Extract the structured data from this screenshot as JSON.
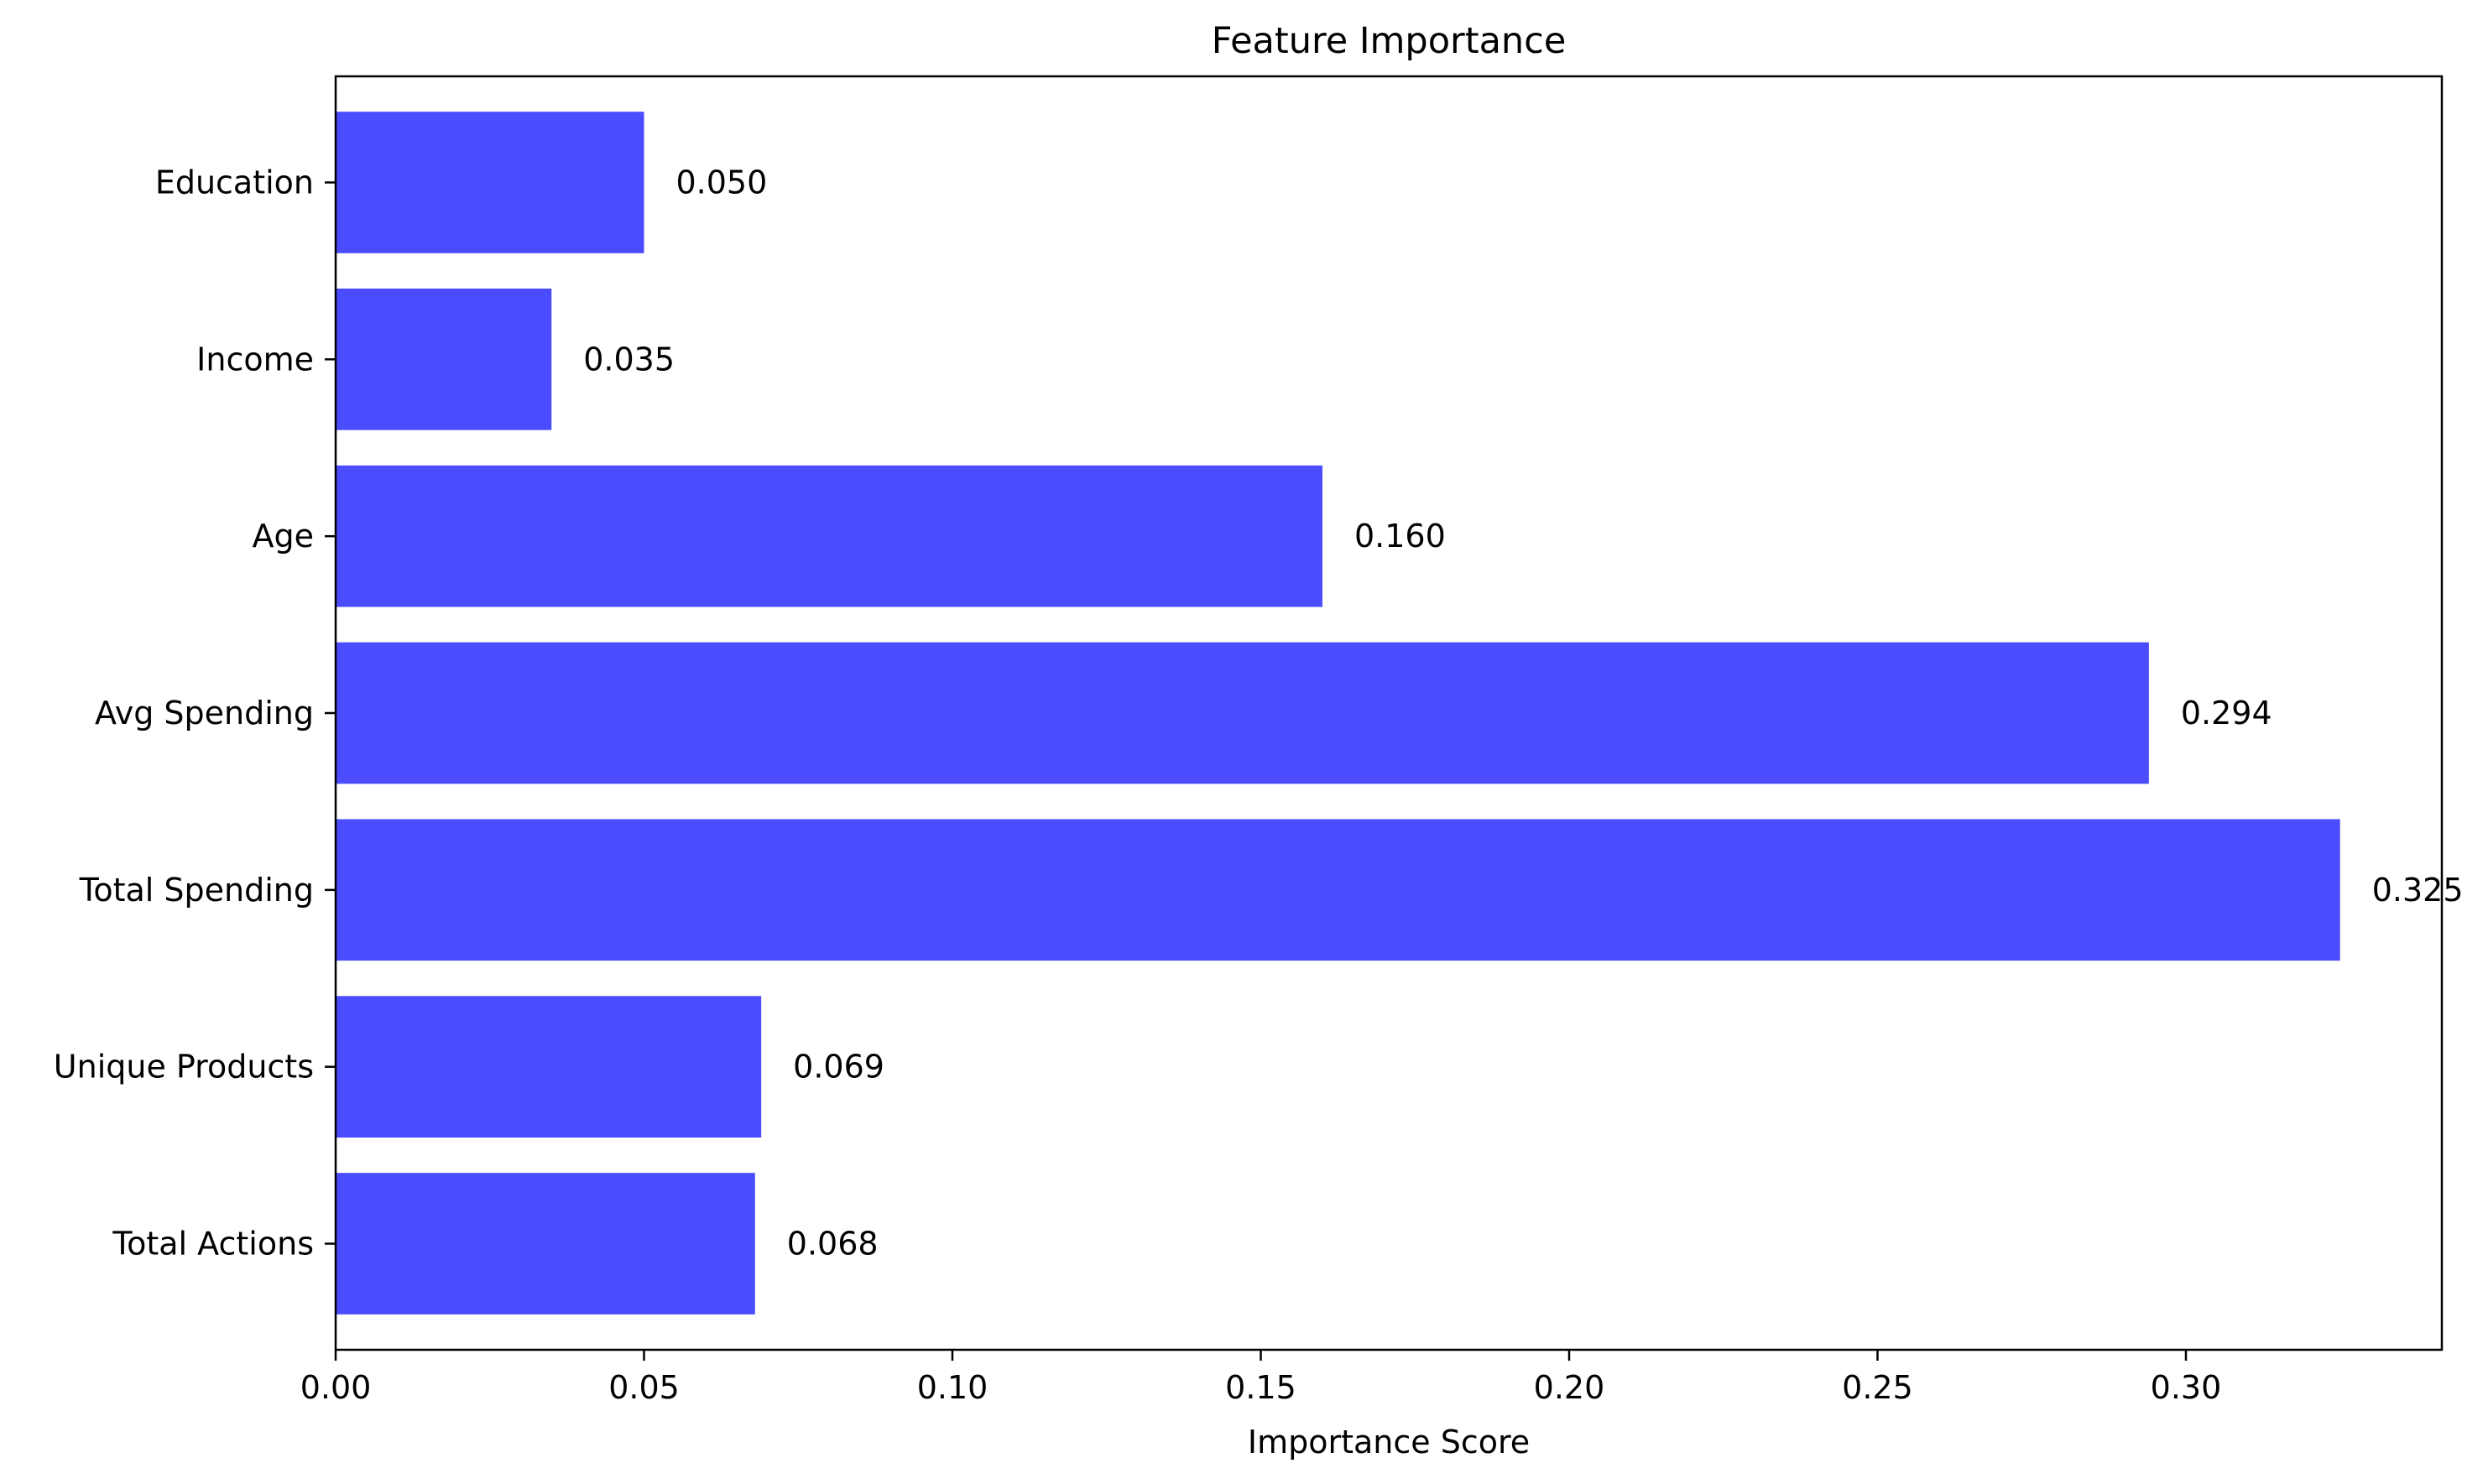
{
  "chart_data": {
    "type": "bar",
    "orientation": "horizontal",
    "title": "Feature Importance",
    "xlabel": "Importance Score",
    "ylabel": "",
    "categories": [
      "Total Actions",
      "Unique Products",
      "Total Spending",
      "Avg Spending",
      "Age",
      "Income",
      "Education"
    ],
    "values": [
      0.068,
      0.069,
      0.325,
      0.294,
      0.16,
      0.035,
      0.05
    ],
    "value_labels": [
      "0.068",
      "0.069",
      "0.325",
      "0.294",
      "0.160",
      "0.035",
      "0.050"
    ],
    "xlim": [
      0,
      0.3415
    ],
    "x_ticks": [
      0.0,
      0.05,
      0.1,
      0.15,
      0.2,
      0.25,
      0.3
    ],
    "x_tick_labels": [
      "0.00",
      "0.05",
      "0.10",
      "0.15",
      "0.20",
      "0.25",
      "0.30"
    ],
    "grid": false,
    "legend": "none",
    "bar_color": "#4c4cff"
  }
}
